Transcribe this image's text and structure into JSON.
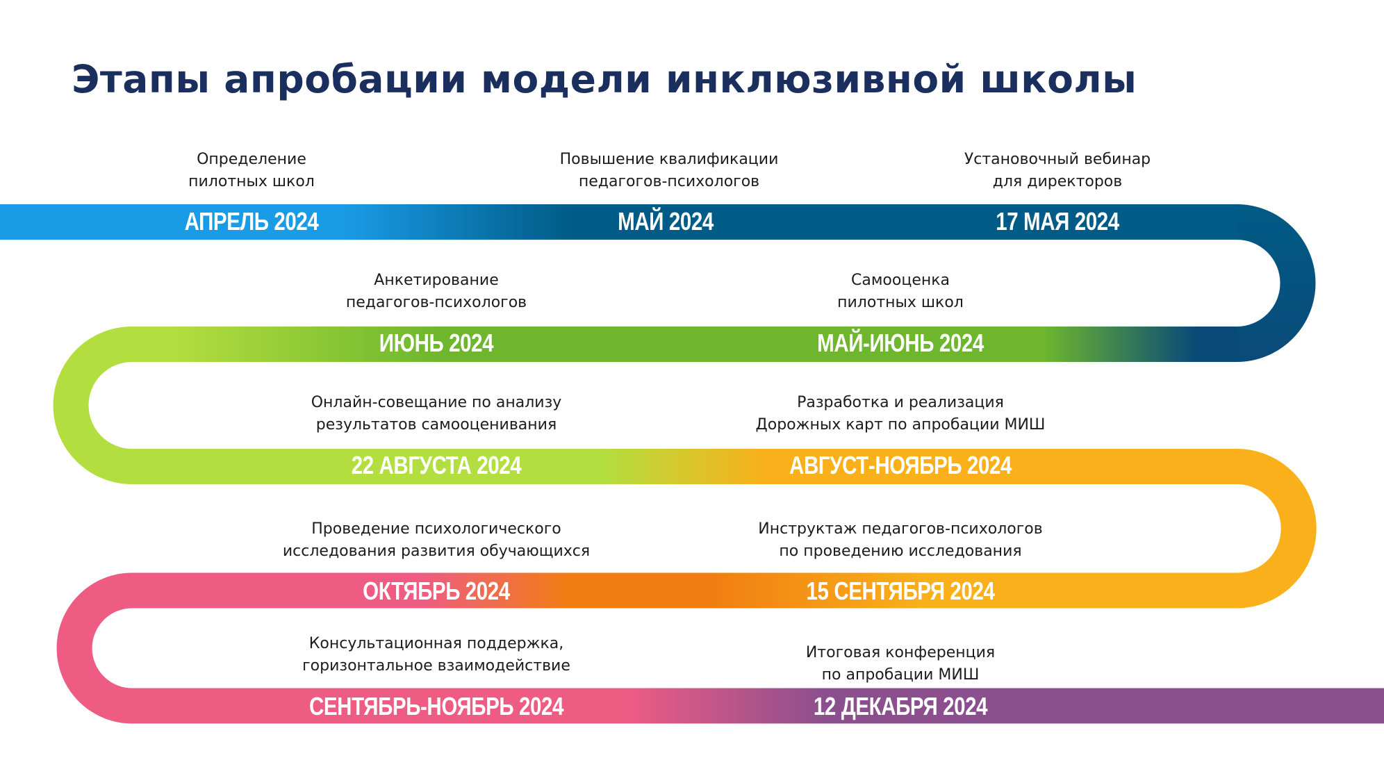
{
  "title": "Этапы апробации модели инклюзивной школы",
  "colors": {
    "title": "#1b2f5e",
    "blue_light": "#1a9be6",
    "blue_dark": "#005b86",
    "blue_navy": "#0a4a78",
    "green_light": "#b3de3f",
    "green": "#6db62e",
    "orange_light": "#f9b01b",
    "orange": "#f07e12",
    "pink": "#ee5c84",
    "purple": "#8b4f8e"
  },
  "stages": [
    {
      "date": "АПРЕЛЬ 2024",
      "description": "Определение\nпилотных школ"
    },
    {
      "date": "МАЙ 2024",
      "description": "Повышение квалификации\nпедагогов-психологов"
    },
    {
      "date": "17 МАЯ 2024",
      "description": "Установочный вебинар\nдля директоров"
    },
    {
      "date": "МАЙ-ИЮНЬ 2024",
      "description": "Самооценка\nпилотных школ"
    },
    {
      "date": "ИЮНЬ 2024",
      "description": "Анкетирование\nпедагогов-психологов"
    },
    {
      "date": "22 АВГУСТА 2024",
      "description": "Онлайн-совещание по анализу\nрезультатов самооценивания"
    },
    {
      "date": "АВГУСТ-НОЯБРЬ 2024",
      "description": "Разработка и реализация\nДорожных карт по апробации МИШ"
    },
    {
      "date": "15 СЕНТЯБРЯ 2024",
      "description": "Инструктаж педагогов-психологов\nпо проведению исследования"
    },
    {
      "date": "ОКТЯБРЬ 2024",
      "description": "Проведение психологического\nисследования развития обучающихся"
    },
    {
      "date": "СЕНТЯБРЬ-НОЯБРЬ 2024",
      "description": "Консультационная поддержка,\nгоризонтальное взаимодействие"
    },
    {
      "date": "12 ДЕКАБРЯ 2024",
      "description": "Итоговая конференция\nпо апробации МИШ"
    }
  ]
}
